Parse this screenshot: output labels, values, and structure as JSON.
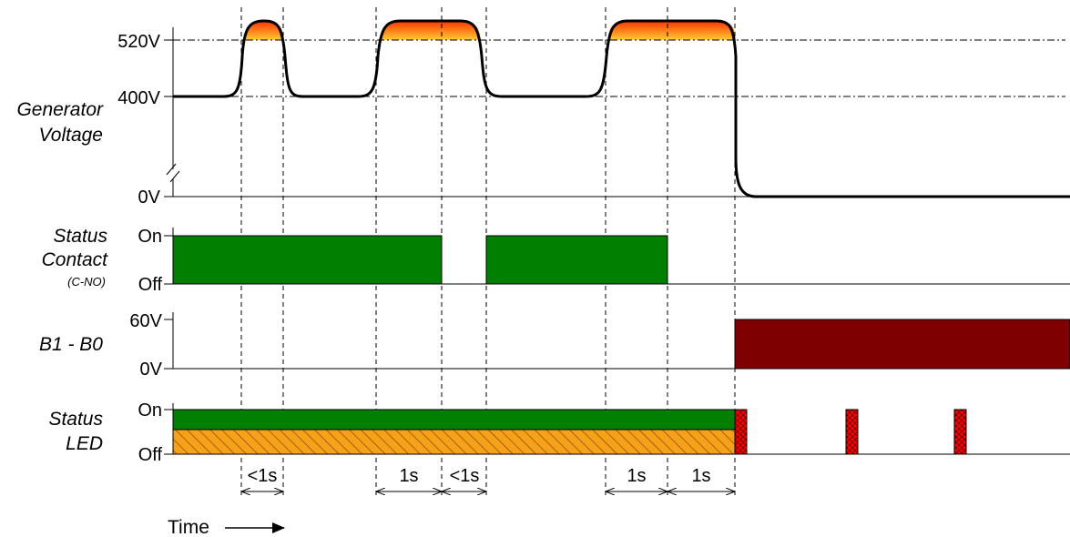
{
  "colors": {
    "contact_green": "#007f00",
    "led_green": "#007f00",
    "led_orange": "#f7a11a",
    "b1b0_fill": "#7f0000",
    "blink_red": "#ff0000",
    "peak_top": "#ff3300",
    "peak_bottom": "#ffcc33"
  },
  "icons": {
    "axis_break": "double-slash-break-icon",
    "time_arrow": "right-arrow-icon"
  },
  "generator": {
    "label_line1": "Generator",
    "label_line2": "Voltage",
    "ticks": {
      "v520": "520V",
      "v400": "400V",
      "v0": "0V"
    }
  },
  "contact": {
    "label_line1": "Status",
    "label_line2": "Contact",
    "label_line3": "(C-NO)",
    "on": "On",
    "off": "Off"
  },
  "b1b0": {
    "label": "B1 - B0",
    "v60": "60V",
    "v0": "0V"
  },
  "led": {
    "label_line1": "Status",
    "label_line2": "LED",
    "on": "On",
    "off": "Off"
  },
  "durations": [
    "<1s",
    "1s",
    "<1s",
    "1s",
    "1s"
  ],
  "time_label": "Time"
}
